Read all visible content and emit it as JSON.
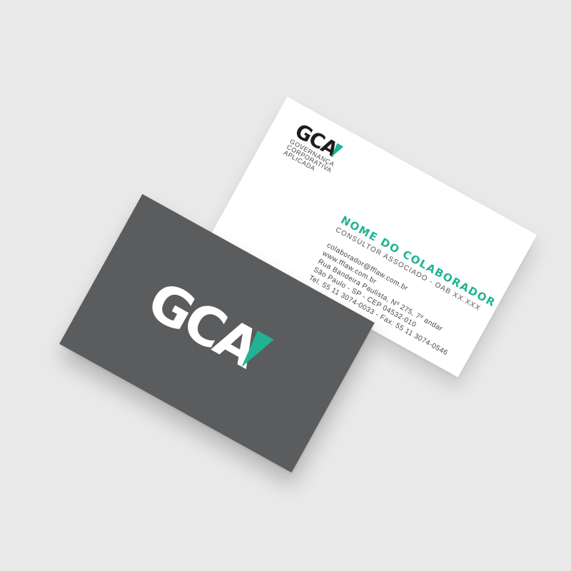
{
  "brand": {
    "logo_text": "GCA",
    "accent_color": "#21b394",
    "dark_card_color": "#5b5c5e",
    "tagline": [
      "GOVERNANÇA",
      "CORPORATIVA",
      "APLICADA"
    ]
  },
  "back_card": {
    "name": "NOME DO COLABORADOR",
    "role": "CONSULTOR ASSOCIADO - OAB XX.XXX",
    "contact": [
      "colaborador@fflaw.com.br",
      "www.fflaw.com.br",
      "Rua Bandeira Paulista, Nº 275, 7º andar",
      "São Paulo - SP - CEP 04532-010",
      "Tel. 55 11 3074-0033 - Fax: 55 11 3074-0546"
    ]
  }
}
